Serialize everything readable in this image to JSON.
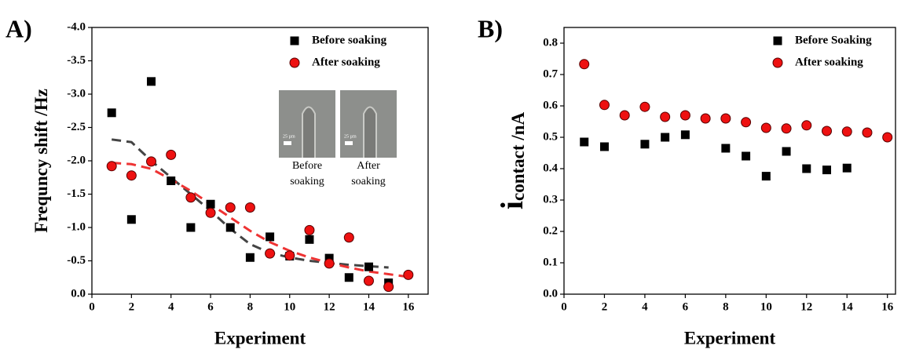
{
  "chart_data": [
    {
      "type": "scatter",
      "panel_label": "A)",
      "x_label": "Experiment",
      "y_label": [
        "Frequncy shift /Hz"
      ],
      "xlim": [
        0,
        17
      ],
      "xticks": [
        0,
        2,
        4,
        6,
        8,
        10,
        12,
        14,
        16
      ],
      "ylim": [
        0,
        -4
      ],
      "yticks": [
        {
          "value": 0,
          "label": "0.0"
        },
        -0.5,
        {
          "value": -1,
          "label": "-1.0"
        },
        -1.5,
        {
          "value": -2,
          "label": "-2.0"
        },
        -2.5,
        {
          "value": -3,
          "label": "-3.0"
        },
        -3.5,
        {
          "value": -4,
          "label": "-4.0"
        }
      ],
      "legend": "upper right",
      "series": [
        {
          "name": "Before soaking",
          "color": "#000000",
          "marker": "square",
          "x": [
            1,
            2,
            3,
            4,
            5,
            6,
            7,
            8,
            9,
            10,
            11,
            12,
            13,
            14,
            15
          ],
          "values": [
            -2.72,
            -1.12,
            -3.19,
            -1.7,
            -1.0,
            -1.35,
            -1.0,
            -0.55,
            -0.86,
            -0.57,
            -0.82,
            -0.54,
            -0.25,
            -0.41,
            -0.17
          ]
        },
        {
          "name": "After soaking",
          "color": "#ee1111",
          "marker": "circle",
          "x": [
            1,
            2,
            3,
            4,
            5,
            6,
            7,
            8,
            9,
            10,
            11,
            12,
            13,
            14,
            15,
            16
          ],
          "values": [
            -1.92,
            -1.78,
            -1.99,
            -2.09,
            -1.45,
            -1.22,
            -1.3,
            -1.3,
            -0.61,
            -0.58,
            -0.96,
            -0.46,
            -0.85,
            -0.2,
            -0.11,
            -0.29
          ]
        }
      ],
      "fits": [
        {
          "color": "#444444",
          "x": [
            1,
            2,
            3,
            4,
            5,
            6,
            7,
            8,
            9,
            10,
            11,
            12,
            13,
            14,
            15
          ],
          "values": [
            -2.32,
            -2.28,
            -2.0,
            -1.75,
            -1.5,
            -1.25,
            -0.98,
            -0.75,
            -0.62,
            -0.55,
            -0.5,
            -0.47,
            -0.44,
            -0.42,
            -0.4
          ]
        },
        {
          "color": "#ee3333",
          "x": [
            1,
            2,
            3,
            4,
            5,
            6,
            7,
            8,
            9,
            10,
            11,
            12,
            13,
            14,
            15,
            16
          ],
          "values": [
            -1.97,
            -1.95,
            -1.88,
            -1.72,
            -1.55,
            -1.35,
            -1.15,
            -0.95,
            -0.78,
            -0.65,
            -0.55,
            -0.47,
            -0.4,
            -0.34,
            -0.3,
            -0.26
          ]
        }
      ],
      "inset_scale": "25 µm",
      "inset_labels": [
        [
          "Before",
          "soaking"
        ],
        [
          "After",
          "soaking"
        ]
      ]
    },
    {
      "type": "scatter",
      "panel_label": "B)",
      "x_label": "Experiment",
      "y_label": [
        "i",
        "contact /nA"
      ],
      "xlim": [
        0,
        16.4
      ],
      "xticks": [
        0,
        2,
        4,
        6,
        8,
        10,
        12,
        14,
        16
      ],
      "ylim": [
        0,
        0.85
      ],
      "yticks": [
        {
          "value": 0,
          "label": "0.0"
        },
        0.1,
        0.2,
        0.3,
        0.4,
        0.5,
        0.6,
        0.7,
        0.8
      ],
      "legend": "upper right",
      "series": [
        {
          "name": "Before Soaking",
          "color": "#000000",
          "marker": "square",
          "x": [
            1,
            2,
            4,
            5,
            6,
            8,
            9,
            10,
            11,
            12,
            13,
            14
          ],
          "values": [
            0.485,
            0.47,
            0.478,
            0.5,
            0.508,
            0.465,
            0.44,
            0.376,
            0.455,
            0.4,
            0.396,
            0.402
          ]
        },
        {
          "name": "After soaking",
          "color": "#ee1111",
          "marker": "circle",
          "x": [
            1,
            2,
            3,
            4,
            5,
            6,
            7,
            8,
            9,
            10,
            11,
            12,
            13,
            14,
            15,
            16
          ],
          "values": [
            0.733,
            0.603,
            0.57,
            0.597,
            0.565,
            0.57,
            0.56,
            0.56,
            0.548,
            0.53,
            0.528,
            0.538,
            0.52,
            0.518,
            0.515,
            0.5
          ]
        }
      ]
    }
  ]
}
